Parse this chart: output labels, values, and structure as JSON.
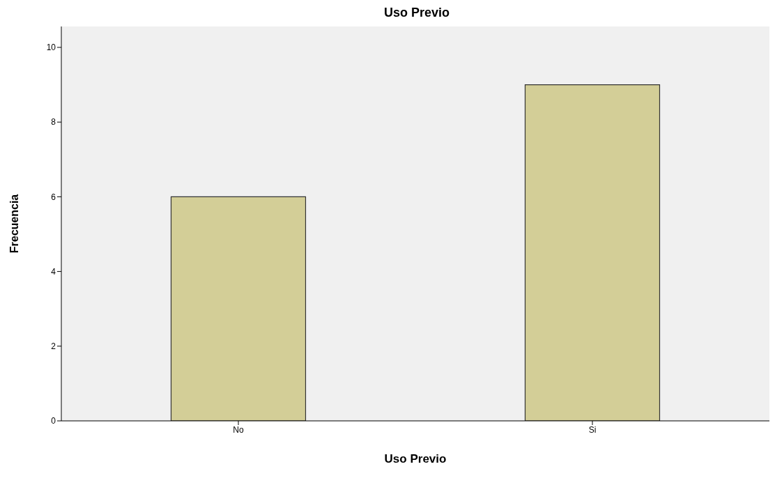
{
  "chart_data": {
    "type": "bar",
    "title": "Uso Previo",
    "xlabel": "Uso Previo",
    "ylabel": "Frecuencia",
    "categories": [
      "No",
      "Si"
    ],
    "values": [
      6,
      9
    ],
    "color": "#d3ce97",
    "ylim": [
      0,
      10.56
    ],
    "yticks": [
      0,
      2,
      4,
      6,
      8,
      10
    ],
    "grid": false
  }
}
